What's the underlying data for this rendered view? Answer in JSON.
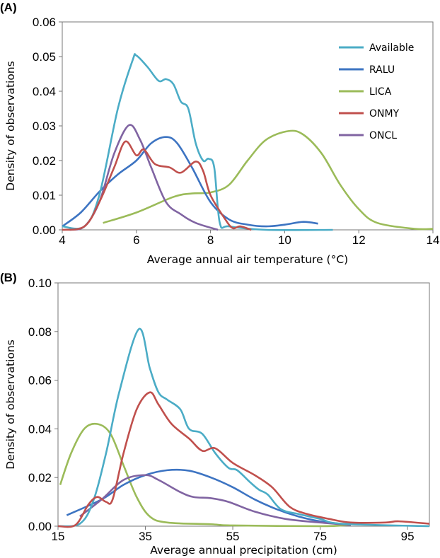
{
  "series_colors": {
    "Available": "#4bacc6",
    "RALU": "#3d74c2",
    "LICA": "#9bbb59",
    "ONMY": "#c0504d",
    "ONCL": "#8064a2"
  },
  "chart_data": [
    {
      "type": "line",
      "panel_label": "(A)",
      "xlabel": "Average annual air temperature (°C)",
      "ylabel": "Density of observations",
      "xlim": [
        4,
        14
      ],
      "ylim": [
        0,
        0.06
      ],
      "xticks": [
        4,
        6,
        8,
        10,
        12,
        14
      ],
      "xtick_labels": [
        "4",
        "6",
        "8",
        "10",
        "12",
        "14"
      ],
      "yticks": [
        0,
        0.01,
        0.02,
        0.03,
        0.04,
        0.05,
        0.06
      ],
      "ytick_labels": [
        "0.00",
        "0.01",
        "0.02",
        "0.03",
        "0.04",
        "0.05",
        "0.06"
      ],
      "legend": [
        "Available",
        "RALU",
        "LICA",
        "ONMY",
        "ONCL"
      ],
      "legend_position": "top-right",
      "grid": false,
      "series": [
        {
          "name": "Available",
          "points": [
            [
              4,
              0.001
            ],
            [
              4.6,
              0.001
            ],
            [
              5,
              0.01
            ],
            [
              5.5,
              0.035
            ],
            [
              5.9,
              0.049
            ],
            [
              6,
              0.0503
            ],
            [
              6.3,
              0.047
            ],
            [
              6.6,
              0.043
            ],
            [
              6.8,
              0.0435
            ],
            [
              7,
              0.042
            ],
            [
              7.2,
              0.037
            ],
            [
              7.4,
              0.035
            ],
            [
              7.6,
              0.025
            ],
            [
              7.8,
              0.02
            ],
            [
              7.95,
              0.0205
            ],
            [
              8.1,
              0.018
            ],
            [
              8.25,
              0.002
            ],
            [
              8.5,
              0.001
            ],
            [
              9.5,
              0
            ],
            [
              11.3,
              0
            ]
          ]
        },
        {
          "name": "RALU",
          "points": [
            [
              4,
              0.001
            ],
            [
              4.5,
              0.005
            ],
            [
              5,
              0.011
            ],
            [
              5.5,
              0.016
            ],
            [
              6,
              0.02
            ],
            [
              6.4,
              0.025
            ],
            [
              6.8,
              0.0268
            ],
            [
              7.1,
              0.025
            ],
            [
              7.5,
              0.018
            ],
            [
              8,
              0.008
            ],
            [
              8.5,
              0.003
            ],
            [
              9,
              0.0015
            ],
            [
              9.5,
              0.001
            ],
            [
              10,
              0.0015
            ],
            [
              10.5,
              0.0023
            ],
            [
              10.9,
              0.0018
            ]
          ]
        },
        {
          "name": "LICA",
          "points": [
            [
              5.1,
              0.002
            ],
            [
              6,
              0.005
            ],
            [
              7,
              0.0095
            ],
            [
              7.5,
              0.0105
            ],
            [
              8,
              0.0108
            ],
            [
              8.5,
              0.013
            ],
            [
              9,
              0.02
            ],
            [
              9.5,
              0.026
            ],
            [
              10.1,
              0.0285
            ],
            [
              10.5,
              0.0275
            ],
            [
              11,
              0.022
            ],
            [
              11.5,
              0.013
            ],
            [
              12,
              0.006
            ],
            [
              12.5,
              0.002
            ],
            [
              13.5,
              0.0003
            ],
            [
              14,
              0.0003
            ]
          ]
        },
        {
          "name": "ONMY",
          "points": [
            [
              4,
              0
            ],
            [
              4.6,
              0.001
            ],
            [
              5,
              0.008
            ],
            [
              5.4,
              0.018
            ],
            [
              5.7,
              0.0255
            ],
            [
              6,
              0.0215
            ],
            [
              6.2,
              0.0232
            ],
            [
              6.5,
              0.019
            ],
            [
              6.9,
              0.018
            ],
            [
              7.2,
              0.0165
            ],
            [
              7.6,
              0.0197
            ],
            [
              7.8,
              0.017
            ],
            [
              8,
              0.01
            ],
            [
              8.4,
              0.003
            ],
            [
              8.6,
              0.0005
            ],
            [
              8.8,
              0.001
            ],
            [
              9.1,
              0
            ]
          ]
        },
        {
          "name": "ONCL",
          "points": [
            [
              4.2,
              0
            ],
            [
              4.6,
              0.001
            ],
            [
              5,
              0.008
            ],
            [
              5.4,
              0.022
            ],
            [
              5.8,
              0.0302
            ],
            [
              6.1,
              0.026
            ],
            [
              6.4,
              0.018
            ],
            [
              6.8,
              0.008
            ],
            [
              7.2,
              0.0045
            ],
            [
              7.6,
              0.002
            ],
            [
              8.2,
              0
            ]
          ]
        }
      ]
    },
    {
      "type": "line",
      "panel_label": "(B)",
      "xlabel": "Average annual precipitation (cm)",
      "ylabel": "Density of observations",
      "xlim": [
        15,
        100
      ],
      "ylim": [
        0,
        0.1
      ],
      "xticks": [
        15,
        35,
        55,
        75,
        95
      ],
      "xtick_labels": [
        "15",
        "35",
        "55",
        "75",
        "95"
      ],
      "yticks": [
        0,
        0.02,
        0.04,
        0.06,
        0.08,
        0.1
      ],
      "ytick_labels": [
        "0.00",
        "0.02",
        "0.04",
        "0.06",
        "0.08",
        "0.10"
      ],
      "grid": false,
      "series": [
        {
          "name": "Available",
          "points": [
            [
              15,
              0
            ],
            [
              20,
              0.001
            ],
            [
              23,
              0.01
            ],
            [
              26,
              0.03
            ],
            [
              29,
              0.055
            ],
            [
              33.5,
              0.081
            ],
            [
              36,
              0.065
            ],
            [
              38,
              0.055
            ],
            [
              40,
              0.052
            ],
            [
              43,
              0.048
            ],
            [
              45,
              0.04
            ],
            [
              48,
              0.038
            ],
            [
              51,
              0.03
            ],
            [
              54,
              0.024
            ],
            [
              56,
              0.023
            ],
            [
              59,
              0.018
            ],
            [
              61,
              0.015
            ],
            [
              63,
              0.013
            ],
            [
              66,
              0.007
            ],
            [
              70,
              0.005
            ],
            [
              75,
              0.003
            ],
            [
              80,
              0.001
            ],
            [
              100,
              0
            ]
          ]
        },
        {
          "name": "RALU",
          "points": [
            [
              17,
              0.0045
            ],
            [
              25,
              0.011
            ],
            [
              30,
              0.017
            ],
            [
              35,
              0.021
            ],
            [
              40,
              0.023
            ],
            [
              45,
              0.0228
            ],
            [
              50,
              0.02
            ],
            [
              55,
              0.016
            ],
            [
              60,
              0.011
            ],
            [
              65,
              0.007
            ],
            [
              70,
              0.004
            ],
            [
              75,
              0.002
            ],
            [
              82,
              0.0005
            ]
          ]
        },
        {
          "name": "LICA",
          "points": [
            [
              15.5,
              0.017
            ],
            [
              18,
              0.03
            ],
            [
              21,
              0.04
            ],
            [
              24,
              0.042
            ],
            [
              27,
              0.038
            ],
            [
              30,
              0.025
            ],
            [
              33,
              0.012
            ],
            [
              36,
              0.004
            ],
            [
              40,
              0.0015
            ],
            [
              50,
              0.0008
            ],
            [
              55,
              0.0003
            ],
            [
              75,
              0
            ],
            [
              82,
              0.0005
            ]
          ]
        },
        {
          "name": "ONMY",
          "points": [
            [
              15,
              0
            ],
            [
              19,
              0.0005
            ],
            [
              22,
              0.009
            ],
            [
              24,
              0.012
            ],
            [
              26,
              0.01
            ],
            [
              27.5,
              0.011
            ],
            [
              30,
              0.03
            ],
            [
              33,
              0.048
            ],
            [
              36,
              0.055
            ],
            [
              38,
              0.05
            ],
            [
              41,
              0.042
            ],
            [
              45,
              0.036
            ],
            [
              48,
              0.031
            ],
            [
              51,
              0.032
            ],
            [
              55,
              0.026
            ],
            [
              60,
              0.021
            ],
            [
              64,
              0.016
            ],
            [
              68,
              0.008
            ],
            [
              72,
              0.005
            ],
            [
              77,
              0.003
            ],
            [
              82,
              0.0015
            ],
            [
              90,
              0.0015
            ],
            [
              93,
              0.002
            ],
            [
              100,
              0.001
            ]
          ]
        },
        {
          "name": "ONCL",
          "points": [
            [
              20,
              0.004
            ],
            [
              25,
              0.011
            ],
            [
              30,
              0.019
            ],
            [
              35,
              0.021
            ],
            [
              38,
              0.019
            ],
            [
              43,
              0.014
            ],
            [
              46,
              0.012
            ],
            [
              50,
              0.0115
            ],
            [
              54,
              0.01
            ],
            [
              60,
              0.006
            ],
            [
              67,
              0.003
            ],
            [
              75,
              0.0015
            ],
            [
              82,
              0.0005
            ]
          ]
        }
      ]
    }
  ]
}
